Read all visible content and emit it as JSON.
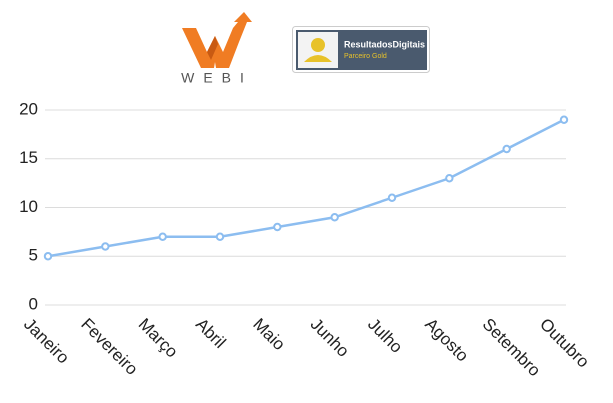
{
  "header": {
    "brand": "WEBI",
    "partner_name": "ResultadosDigitais",
    "partner_tier": "Parceiro Gold"
  },
  "chart_data": {
    "type": "line",
    "categories": [
      "Janeiro",
      "Fevereiro",
      "Março",
      "Abril",
      "Maio",
      "Junho",
      "Julho",
      "Agosto",
      "Setembro",
      "Outubro"
    ],
    "values": [
      5,
      6,
      7,
      7,
      8,
      9,
      11,
      13,
      16,
      19
    ],
    "color": "#8cbdf0",
    "ylim": [
      0,
      20
    ],
    "yticks": [
      0,
      5,
      10,
      15,
      20
    ],
    "grid": true
  }
}
